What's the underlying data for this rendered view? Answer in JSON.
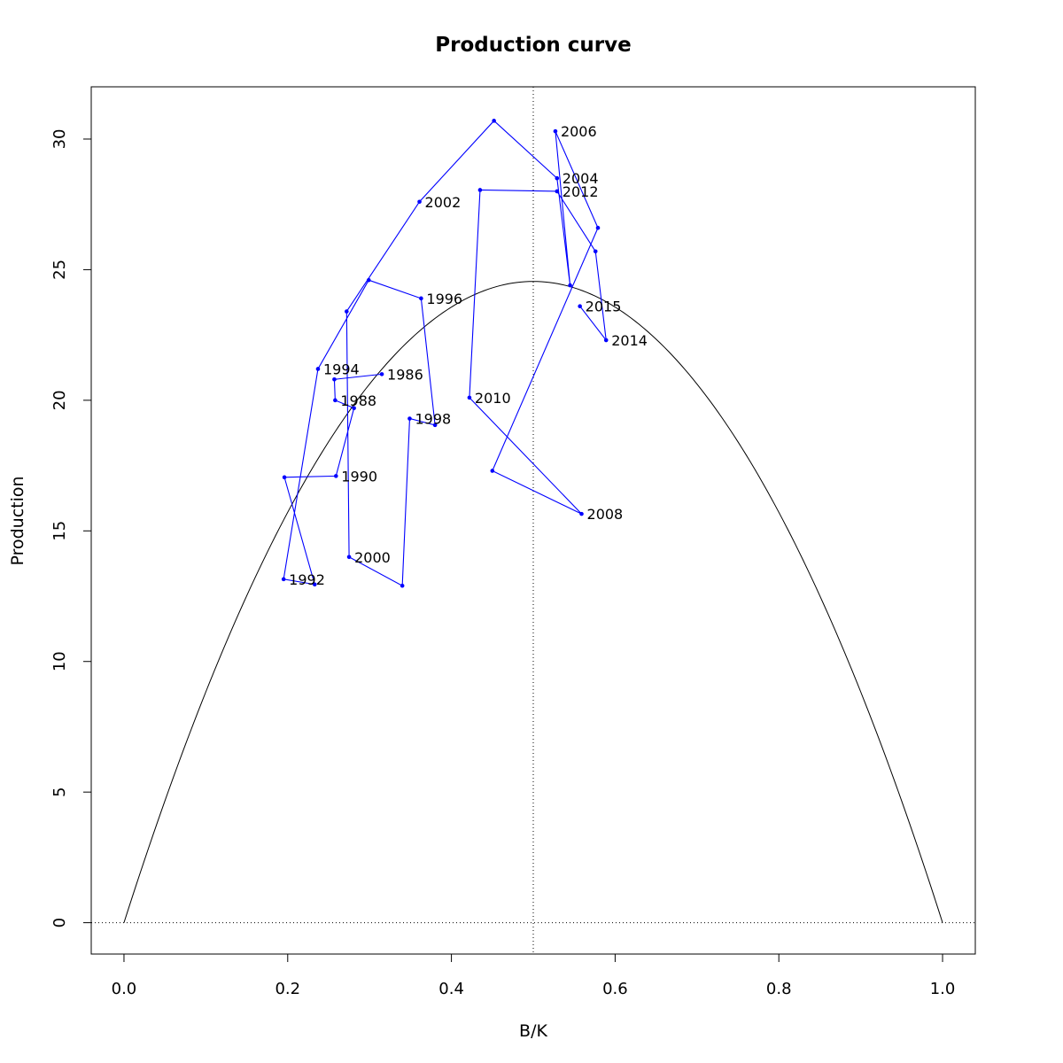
{
  "chart_data": {
    "type": "line",
    "title": "Production curve",
    "xlabel": "B/K",
    "ylabel": "Production",
    "xlim": [
      -0.04,
      1.04
    ],
    "ylim": [
      -1.2,
      32.0
    ],
    "xticks": [
      "0.0",
      "0.2",
      "0.4",
      "0.6",
      "0.8",
      "1.0"
    ],
    "xtick_values": [
      0.0,
      0.2,
      0.4,
      0.6,
      0.8,
      1.0
    ],
    "yticks": [
      "0",
      "5",
      "10",
      "15",
      "20",
      "25",
      "30"
    ],
    "ytick_values": [
      0,
      5,
      10,
      15,
      20,
      25,
      30
    ],
    "reference_lines": {
      "vertical_x": 0.5,
      "horizontal_y": 0,
      "style": "dotted"
    },
    "grid": false,
    "colors": {
      "series": "#0000ff",
      "curve": "#000000"
    },
    "curve": {
      "type": "parabola",
      "equation": "y = 4 * 24.55 * x * (1 - x)",
      "peak_x": 0.5,
      "peak_y": 24.55
    },
    "series": [
      {
        "x": [
          0.315,
          0.257,
          0.258,
          0.281,
          0.259,
          0.196,
          0.233,
          0.195,
          0.237,
          0.299,
          0.363,
          0.38,
          0.349,
          0.34,
          0.275,
          0.272,
          0.361,
          0.452,
          0.529,
          0.545,
          0.527,
          0.579,
          0.45,
          0.559,
          0.422,
          0.435,
          0.529,
          0.576,
          0.589,
          0.557
        ],
        "y": [
          21.0,
          20.8,
          20.0,
          19.7,
          17.1,
          17.05,
          12.95,
          13.15,
          21.2,
          24.6,
          23.9,
          19.05,
          19.3,
          12.9,
          14.0,
          23.4,
          27.6,
          30.7,
          28.5,
          24.4,
          30.3,
          26.6,
          17.3,
          15.65,
          20.1,
          28.05,
          28.0,
          25.7,
          22.3,
          23.6
        ],
        "labels": [
          "1986",
          "",
          "1988",
          "",
          "1990",
          "",
          "",
          "1992",
          "1994",
          "",
          "1996",
          "",
          "1998",
          "",
          "2000",
          "",
          "2002",
          "",
          "2004",
          "",
          "2006",
          "",
          "",
          "2008",
          "2010",
          "",
          "2012",
          "",
          "2014",
          "2015"
        ]
      }
    ]
  }
}
